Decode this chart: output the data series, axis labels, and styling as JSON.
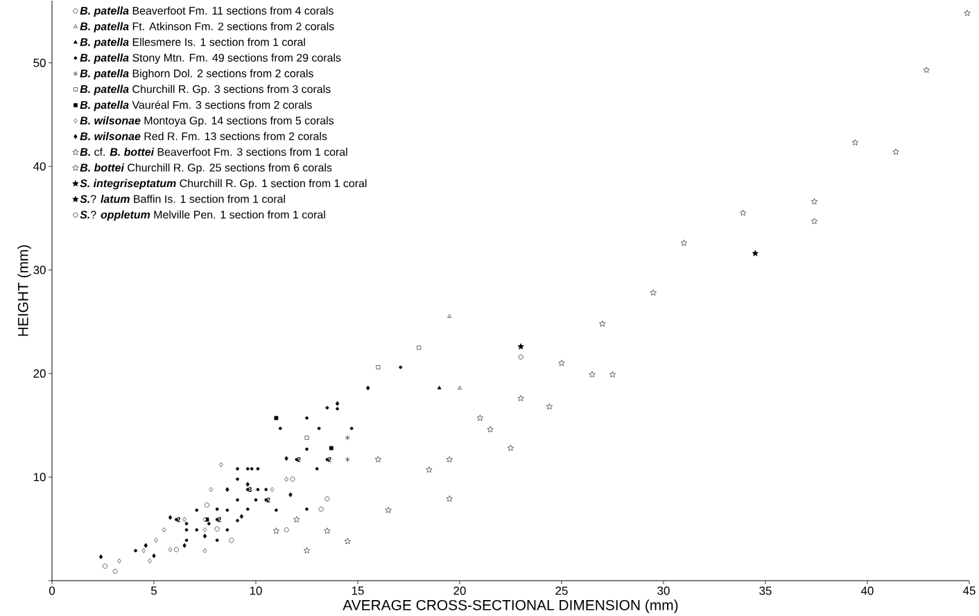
{
  "chart_data": {
    "type": "scatter",
    "xlabel": "AVERAGE CROSS-SECTIONAL DIMENSION (mm)",
    "ylabel": "HEIGHT (mm)",
    "xlim": [
      0,
      45
    ],
    "ylim": [
      0,
      56
    ],
    "xticks": [
      0,
      5,
      10,
      15,
      20,
      25,
      30,
      35,
      40,
      45
    ],
    "yticks": [
      {
        "value": 0,
        "label": null
      },
      10,
      20,
      30,
      40,
      50
    ],
    "legend": "top left",
    "series": [
      {
        "name": "**B. patella** Beaverfoot Fm. 11 sections from 4 corals",
        "color": "#ffffff",
        "marker": "circle",
        "x": [
          2.6,
          3.1,
          6.1,
          7.6,
          8.1,
          8.8,
          11.5,
          11.8,
          13.5,
          13.2
        ],
        "values": [
          1.4,
          0.9,
          3.0,
          7.3,
          5.0,
          3.9,
          4.9,
          9.8,
          7.9,
          6.9
        ]
      },
      {
        "name": "**B. patella** Ft. Atkinson Fm. 2 sections from 2 corals",
        "color": "#ffffff",
        "marker": "triangle",
        "x": [
          19.5,
          20.0
        ],
        "values": [
          25.5,
          18.6
        ]
      },
      {
        "name": "**B. patella** Ellesmere Is. 1 section from 1 coral",
        "color": "#000000",
        "marker": "triangle",
        "x": [
          19.0
        ],
        "values": [
          18.6
        ]
      },
      {
        "name": "**B. patella** Stony Mtn. Fm. 49 sections from 29 corals",
        "color": "#000000",
        "marker": "circle",
        "x": [
          4.1,
          6.1,
          6.6,
          6.6,
          6.6,
          7.1,
          7.1,
          7.7,
          8.1,
          8.1,
          8.6,
          8.6,
          8.1,
          9.1,
          9.1,
          9.1,
          9.1,
          9.6,
          9.8,
          10.1,
          9.6,
          9.6,
          10.1,
          10.0,
          10.5,
          10.5,
          11.0,
          12.5,
          12.5,
          12.0,
          13.5,
          14.0,
          12.5,
          11.2,
          13.1,
          14.7,
          13.5,
          13.0,
          17.1
        ],
        "values": [
          2.9,
          5.9,
          5.5,
          4.9,
          3.9,
          6.8,
          4.9,
          5.5,
          6.9,
          5.9,
          6.8,
          4.9,
          3.9,
          10.8,
          9.8,
          7.8,
          5.8,
          10.8,
          10.8,
          10.8,
          8.8,
          6.9,
          8.8,
          7.8,
          8.8,
          7.8,
          6.8,
          6.9,
          12.7,
          11.7,
          16.7,
          16.6,
          15.7,
          14.7,
          14.7,
          14.7,
          11.7,
          10.8,
          20.6
        ]
      },
      {
        "name": "**B. patella** Bighorn Dol. 2 sections from 2 corals",
        "color": "#000000",
        "marker": "cross",
        "x": [
          14.5,
          14.5
        ],
        "values": [
          11.7,
          13.8
        ]
      },
      {
        "name": "**B. patella** Churchill R. Gp. 3 sections from 3 corals",
        "color": "#ffffff",
        "marker": "square",
        "x": [
          18.0,
          16.0,
          12.5
        ],
        "values": [
          22.5,
          20.6,
          13.8
        ]
      },
      {
        "name": "**B. patella** Vauréal Fm. 3 sections from 2 corals",
        "color": "#000000",
        "marker": "square",
        "x": [
          13.7,
          11.0,
          7.6
        ],
        "values": [
          12.8,
          15.7,
          5.9
        ]
      },
      {
        "name": "**B. wilsonae** Montoya Gp. 14 sections from 5 corals",
        "color": "#ffffff",
        "marker": "diamond",
        "x": [
          3.3,
          4.8,
          4.5,
          5.1,
          5.5,
          5.8,
          6.5,
          7.5,
          7.5,
          7.5,
          7.8,
          8.3,
          10.8,
          11.5
        ],
        "values": [
          1.9,
          1.9,
          2.9,
          3.9,
          4.9,
          3.0,
          5.9,
          4.9,
          2.9,
          5.9,
          8.8,
          11.2,
          8.8,
          9.8
        ]
      },
      {
        "name": "**B. wilsonae** Red R. Fm. 13 sections from 2 corals",
        "color": "#000000",
        "marker": "diamond",
        "x": [
          2.4,
          4.6,
          5.0,
          5.8,
          6.5,
          7.5,
          8.6,
          9.6,
          9.3,
          11.5,
          11.7,
          15.5,
          14.0
        ],
        "values": [
          2.3,
          3.4,
          2.4,
          6.1,
          3.4,
          4.3,
          8.8,
          9.3,
          6.2,
          11.8,
          8.3,
          18.6,
          17.1
        ]
      },
      {
        "name": "**B.** cf. **B. bottei** Beaverfoot Fm. 3 sections from 1 coral",
        "color": "#ffffff",
        "marker": "star",
        "line_style": "dotted",
        "x": [
          19.5,
          14.5,
          12.5
        ],
        "values": [
          7.9,
          3.8,
          2.9
        ]
      },
      {
        "name": "**B. bottei** Churchill R. Gp. 25 sections from 6 corals",
        "color": "#ffffff",
        "marker": "star",
        "x": [
          16.0,
          19.5,
          18.5,
          16.5,
          12.0,
          13.5,
          21.0,
          21.5,
          22.5,
          23.0,
          24.4,
          11.0,
          44.9,
          42.9,
          39.4,
          41.4,
          37.4,
          37.4,
          33.9,
          31.0,
          29.5,
          27.0,
          25.0,
          26.5,
          27.5
        ],
        "values": [
          11.7,
          11.7,
          10.7,
          6.8,
          5.9,
          4.8,
          15.7,
          14.6,
          12.8,
          17.6,
          16.8,
          4.8,
          54.8,
          49.3,
          42.3,
          41.4,
          36.6,
          34.7,
          35.5,
          32.6,
          27.8,
          24.8,
          21.0,
          19.9,
          19.9
        ]
      },
      {
        "name": "**S. integriseptatum** Churchill R. Gp. 1 section from 1 coral",
        "color": "#000000",
        "marker": "star",
        "x": [
          23.0
        ],
        "values": [
          22.6
        ]
      },
      {
        "name": "**S.**? **latum** Baffin Is. 1 section from 1 coral",
        "color": "#000000",
        "marker": "star",
        "x": [
          34.5
        ],
        "values": [
          31.6
        ]
      },
      {
        "name": "**S.**? **oppletum** Melville Pen. 1 section from 1 coral",
        "color": "#ffffff",
        "marker": "circle",
        "line_style": "dotted",
        "x": [
          23.0
        ],
        "values": [
          21.6
        ]
      }
    ],
    "annotations": [
      {
        "text": "2",
        "x": 6.1,
        "y": 5.9
      },
      {
        "text": "2",
        "x": 8.1,
        "y": 5.9
      },
      {
        "text": "3",
        "x": 9.6,
        "y": 8.8
      },
      {
        "text": "2",
        "x": 10.5,
        "y": 7.8
      },
      {
        "text": "2",
        "x": 12.0,
        "y": 11.7
      },
      {
        "text": "2",
        "x": 13.5,
        "y": 11.7
      }
    ]
  }
}
